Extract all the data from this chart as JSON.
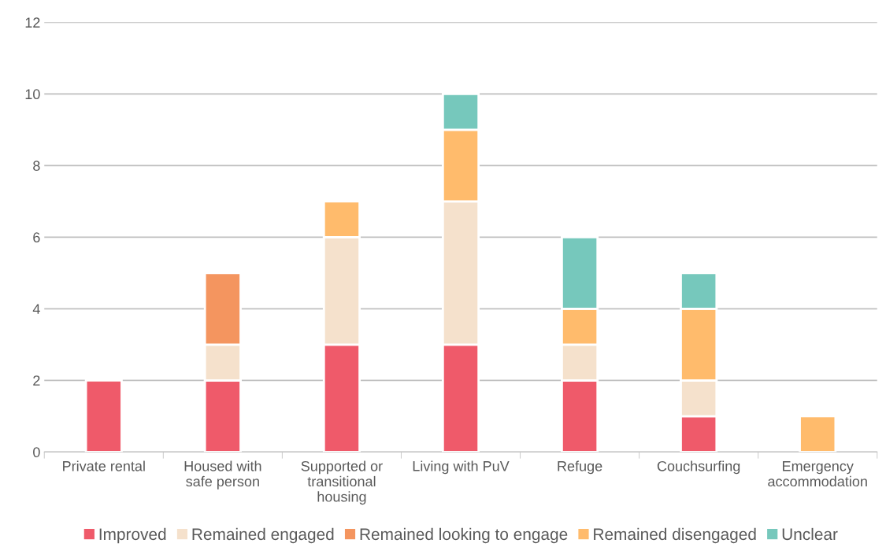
{
  "chart_data": {
    "type": "bar",
    "stacked": true,
    "categories": [
      "Private rental",
      "Housed with\nsafe person",
      "Supported or\ntransitional\nhousing",
      "Living with PuV",
      "Refuge",
      "Couchsurfing",
      "Emergency\naccommodation"
    ],
    "series": [
      {
        "name": "Improved",
        "color": "#ef5a6a",
        "values": [
          2,
          2,
          3,
          3,
          2,
          1,
          null
        ]
      },
      {
        "name": "Remained engaged",
        "color": "#f5e1cc",
        "values": [
          null,
          1,
          3,
          4,
          1,
          1,
          null
        ]
      },
      {
        "name": "Remained looking to engage",
        "color": "#f4955f",
        "values": [
          null,
          2,
          null,
          null,
          null,
          null,
          null
        ]
      },
      {
        "name": "Remained disengaged",
        "color": "#ffbb6c",
        "values": [
          null,
          null,
          1,
          2,
          1,
          2,
          1
        ]
      },
      {
        "name": "Unclear",
        "color": "#76c8bc",
        "values": [
          null,
          null,
          null,
          1,
          2,
          1,
          null
        ]
      }
    ],
    "ylim": [
      0,
      12
    ],
    "yticks": [
      0,
      2,
      4,
      6,
      8,
      10,
      12
    ],
    "grid": "y",
    "legend": "bottom"
  }
}
